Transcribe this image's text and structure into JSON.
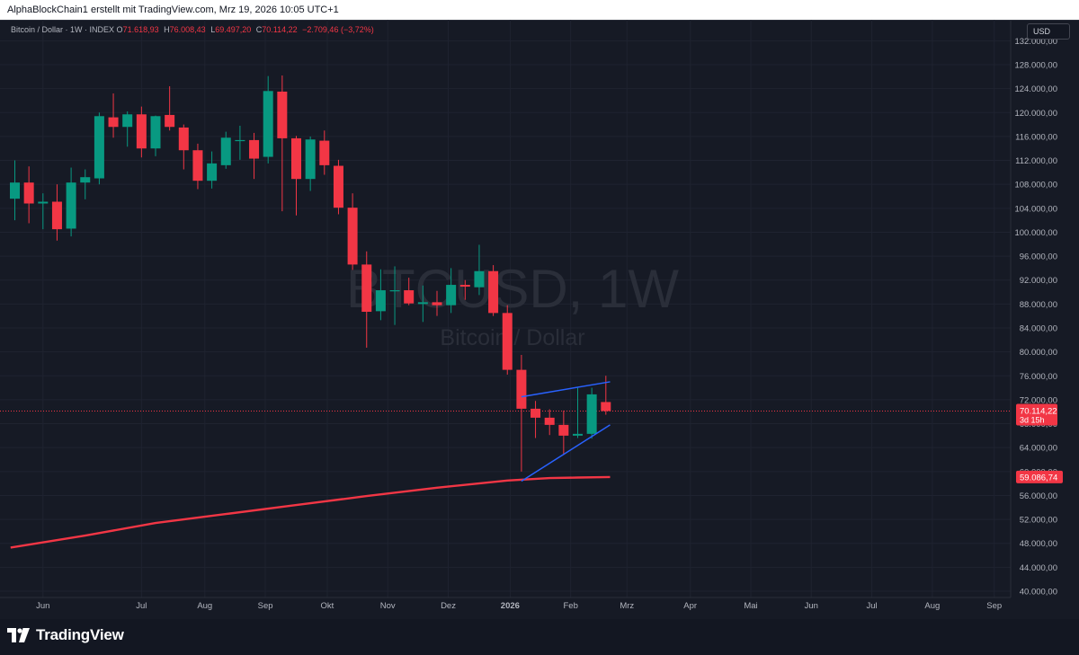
{
  "header": {
    "text": "AlphaBlockChain1 erstellt mit TradingView.com, Mrz 19, 2026 10:05 UTC+1"
  },
  "legend": {
    "symbol": "Bitcoin / Dollar · 1W · INDEX",
    "open_key": "O",
    "open": "71.618,93",
    "high_key": "H",
    "high": "76.008,43",
    "low_key": "L",
    "low": "69.497,20",
    "close_key": "C",
    "close": "70.114,22",
    "change": "−2.709,46 (−3,72%)"
  },
  "currency": "USD",
  "watermark": {
    "symbol": "BTCUSD, 1W",
    "name": "Bitcoin / Dollar"
  },
  "brand": "TradingView",
  "colors": {
    "background": "#161a25",
    "grid": "#1f2330",
    "up": "#089981",
    "down": "#f23645",
    "ma_line": "#f23645",
    "trendline": "#2962ff",
    "axis_text": "#b2b5be"
  },
  "chart_data": {
    "type": "candlestick",
    "title": "Bitcoin / Dollar",
    "interval": "1W",
    "y_axis": {
      "side": "right",
      "min": 40000,
      "max": 132000,
      "ticks": [
        40000,
        44000,
        48000,
        52000,
        56000,
        60000,
        64000,
        68000,
        72000,
        76000,
        80000,
        84000,
        88000,
        92000,
        96000,
        100000,
        104000,
        108000,
        112000,
        116000,
        120000,
        124000,
        128000,
        132000
      ],
      "tick_labels": [
        "40.000,00",
        "44.000,00",
        "48.000,00",
        "52.000,00",
        "56.000,00",
        "60.000,00",
        "64.000,00",
        "68.000,00",
        "72.000,00",
        "76.000,00",
        "80.000,00",
        "84.000,00",
        "88.000,00",
        "92.000,00",
        "96.000,00",
        "100.000,00",
        "104.000,00",
        "108.000,00",
        "112.000,00",
        "116.000,00",
        "120.000,00",
        "124.000,00",
        "128.000,00",
        "132.000,00"
      ]
    },
    "x_axis": {
      "labels": [
        "Jun",
        "Jul",
        "Aug",
        "Sep",
        "Okt",
        "Nov",
        "Dez",
        "2026",
        "Feb",
        "Mrz",
        "Apr",
        "Mai",
        "Jun",
        "Jul",
        "Aug",
        "Sep"
      ],
      "label_weeks": [
        2,
        9,
        13.5,
        17.8,
        22.2,
        26.5,
        30.8,
        35.2,
        39.5,
        43.5,
        48,
        52.3,
        56.6,
        60.9,
        65.2,
        69.6
      ]
    },
    "candles": [
      {
        "o": 105600,
        "h": 112000,
        "l": 102000,
        "c": 108300
      },
      {
        "o": 108300,
        "h": 111000,
        "l": 101500,
        "c": 104800
      },
      {
        "o": 104800,
        "h": 106500,
        "l": 100500,
        "c": 105100
      },
      {
        "o": 105100,
        "h": 108000,
        "l": 98600,
        "c": 100500
      },
      {
        "o": 100600,
        "h": 110800,
        "l": 99300,
        "c": 108300
      },
      {
        "o": 108300,
        "h": 110500,
        "l": 105500,
        "c": 109200
      },
      {
        "o": 109000,
        "h": 120000,
        "l": 108000,
        "c": 119400
      },
      {
        "o": 119200,
        "h": 123200,
        "l": 115800,
        "c": 117600
      },
      {
        "o": 117600,
        "h": 120200,
        "l": 114300,
        "c": 119700
      },
      {
        "o": 119700,
        "h": 121000,
        "l": 112500,
        "c": 114000
      },
      {
        "o": 114000,
        "h": 119500,
        "l": 112700,
        "c": 119400
      },
      {
        "o": 119600,
        "h": 124400,
        "l": 117000,
        "c": 117600
      },
      {
        "o": 117500,
        "h": 118000,
        "l": 110500,
        "c": 113700
      },
      {
        "o": 113700,
        "h": 114800,
        "l": 107200,
        "c": 108600
      },
      {
        "o": 108600,
        "h": 113500,
        "l": 107300,
        "c": 111500
      },
      {
        "o": 111200,
        "h": 116800,
        "l": 110600,
        "c": 115800
      },
      {
        "o": 115300,
        "h": 117800,
        "l": 112100,
        "c": 115400
      },
      {
        "o": 115400,
        "h": 116600,
        "l": 108900,
        "c": 112300
      },
      {
        "o": 112600,
        "h": 126100,
        "l": 111500,
        "c": 123600
      },
      {
        "o": 123500,
        "h": 126200,
        "l": 103500,
        "c": 115700
      },
      {
        "o": 115700,
        "h": 116100,
        "l": 102800,
        "c": 108900
      },
      {
        "o": 108900,
        "h": 116000,
        "l": 106900,
        "c": 115500
      },
      {
        "o": 115300,
        "h": 117000,
        "l": 109600,
        "c": 111200
      },
      {
        "o": 111100,
        "h": 112100,
        "l": 103000,
        "c": 104100
      },
      {
        "o": 104100,
        "h": 106500,
        "l": 93700,
        "c": 94600
      },
      {
        "o": 94600,
        "h": 96800,
        "l": 80700,
        "c": 86700
      },
      {
        "o": 86800,
        "h": 93800,
        "l": 85300,
        "c": 90300
      },
      {
        "o": 90200,
        "h": 94300,
        "l": 84500,
        "c": 90300
      },
      {
        "o": 90300,
        "h": 92400,
        "l": 87800,
        "c": 88100
      },
      {
        "o": 88000,
        "h": 91100,
        "l": 85000,
        "c": 88300
      },
      {
        "o": 88300,
        "h": 90200,
        "l": 86000,
        "c": 87800
      },
      {
        "o": 87800,
        "h": 94000,
        "l": 86500,
        "c": 91200
      },
      {
        "o": 91200,
        "h": 92000,
        "l": 88700,
        "c": 90900
      },
      {
        "o": 90800,
        "h": 97900,
        "l": 89500,
        "c": 93500
      },
      {
        "o": 93500,
        "h": 94500,
        "l": 86000,
        "c": 86500
      },
      {
        "o": 86500,
        "h": 87800,
        "l": 76200,
        "c": 77000
      },
      {
        "o": 77000,
        "h": 79500,
        "l": 60000,
        "c": 70500
      },
      {
        "o": 70500,
        "h": 71800,
        "l": 65600,
        "c": 69000
      },
      {
        "o": 69000,
        "h": 70400,
        "l": 66100,
        "c": 67800
      },
      {
        "o": 67800,
        "h": 70200,
        "l": 62800,
        "c": 66000
      },
      {
        "o": 66000,
        "h": 74000,
        "l": 65600,
        "c": 66300
      },
      {
        "o": 66300,
        "h": 74000,
        "l": 65500,
        "c": 72900
      },
      {
        "o": 71619,
        "h": 76008,
        "l": 69497,
        "c": 70114
      }
    ],
    "moving_average": {
      "color": "#f23645",
      "last_value": 59086.74,
      "points": [
        [
          -0.3,
          47300
        ],
        [
          5,
          49300
        ],
        [
          10,
          51400
        ],
        [
          15,
          52900
        ],
        [
          20,
          54400
        ],
        [
          25,
          55900
        ],
        [
          30,
          57300
        ],
        [
          35,
          58500
        ],
        [
          38,
          58900
        ],
        [
          40,
          59000
        ],
        [
          42.3,
          59090
        ]
      ]
    },
    "trendlines": [
      {
        "from": [
          36,
          72500
        ],
        "to": [
          42.3,
          75000
        ]
      },
      {
        "from": [
          36,
          58400
        ],
        "to": [
          42.3,
          67800
        ]
      }
    ],
    "last_price": {
      "value": 70114.22,
      "label": "70.114,22",
      "countdown": "3d 15h"
    },
    "ma_label": "59.086,74"
  }
}
